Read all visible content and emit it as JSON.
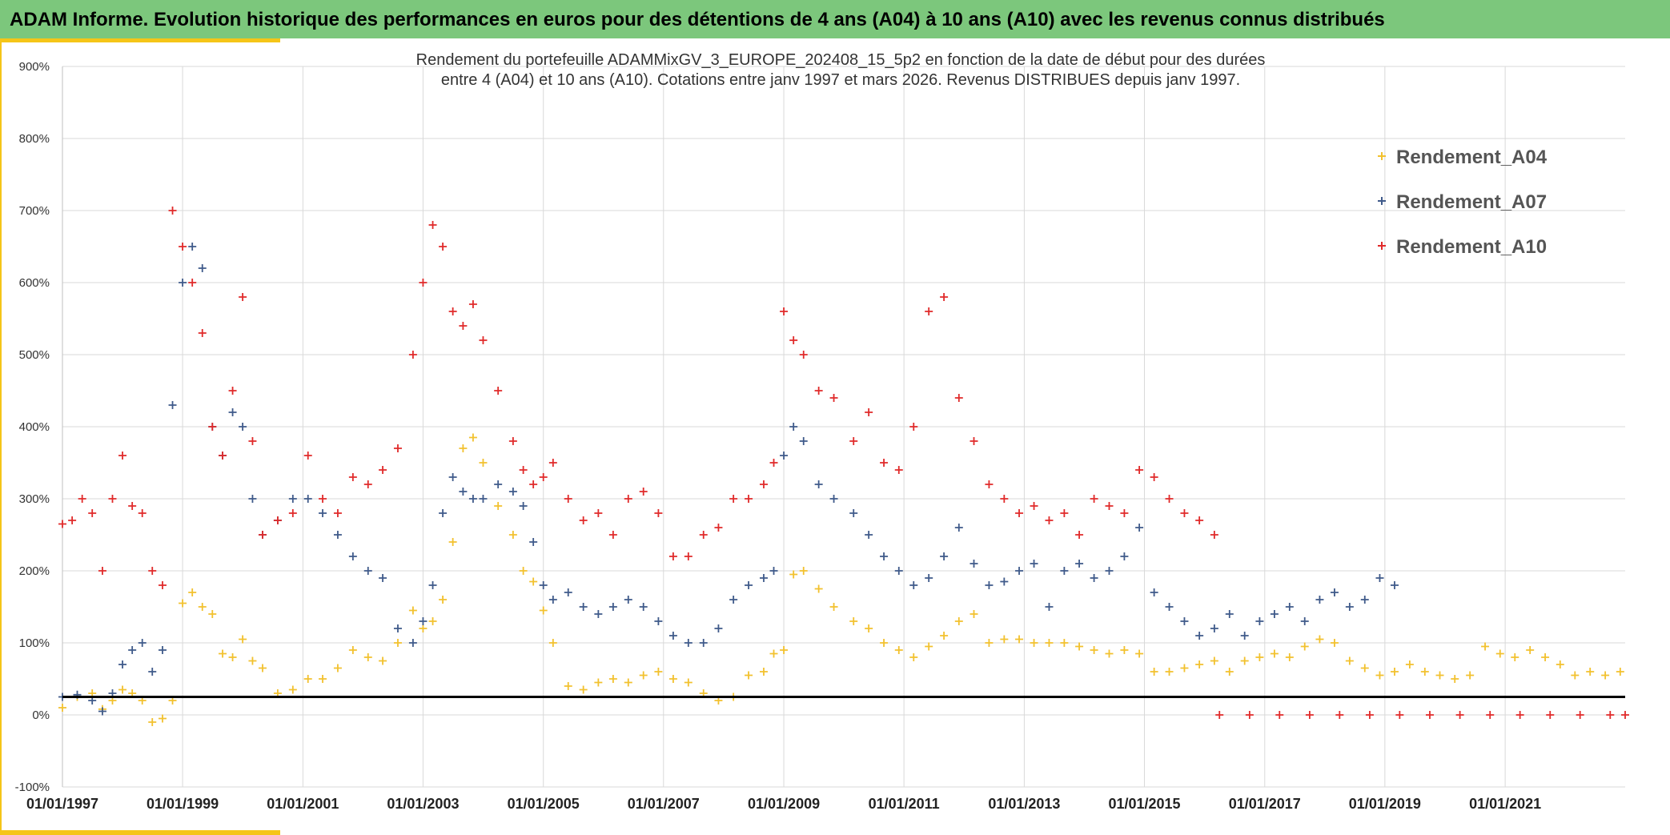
{
  "header": {
    "title": "ADAM Informe. Evolution historique des performances en euros pour des détentions de 4 ans (A04) à 10 ans (A10) avec les revenus connus distribués"
  },
  "chart_data": {
    "type": "scatter",
    "title_line1": "Rendement du portefeuille ADAMMixGV_3_EUROPE_202408_15_5p2  en fonction de la date de début pour des durées",
    "title_line2": "entre 4 (A04) et 10 ans (A10). Cotations entre janv 1997 et mars 2026. Revenus DISTRIBUES depuis janv 1997.",
    "ylim": [
      -100,
      900
    ],
    "yticks": [
      -100,
      0,
      100,
      200,
      300,
      400,
      500,
      600,
      700,
      800,
      900
    ],
    "ytick_labels": [
      "-100%",
      "0%",
      "100%",
      "200%",
      "300%",
      "400%",
      "500%",
      "600%",
      "700%",
      "800%",
      "900%"
    ],
    "xlim": [
      "1997-01-01",
      "2022-12-31"
    ],
    "xticks": [
      "1997-01-01",
      "1999-01-01",
      "2001-01-01",
      "2003-01-01",
      "2005-01-01",
      "2007-01-01",
      "2009-01-01",
      "2011-01-01",
      "2013-01-01",
      "2015-01-01",
      "2017-01-01",
      "2019-01-01",
      "2021-01-01"
    ],
    "xtick_labels": [
      "01/01/1997",
      "01/01/1999",
      "01/01/2001",
      "01/01/2003",
      "01/01/2005",
      "01/01/2007",
      "01/01/2009",
      "01/01/2011",
      "01/01/2013",
      "01/01/2015",
      "01/01/2017",
      "01/01/2019",
      "01/01/2021"
    ],
    "grid": true,
    "legend_position": "top-right",
    "reference_line": {
      "y": 25,
      "color": "#000000"
    },
    "series": [
      {
        "name": "Rendement_A04",
        "color": "#f2c12e",
        "x": [
          "1997-01-01",
          "1997-04-01",
          "1997-07-01",
          "1997-09-01",
          "1997-11-01",
          "1998-01-01",
          "1998-03-01",
          "1998-05-01",
          "1998-07-01",
          "1998-09-01",
          "1998-11-01",
          "1999-01-01",
          "1999-03-01",
          "1999-05-01",
          "1999-07-01",
          "1999-09-01",
          "1999-11-01",
          "2000-01-01",
          "2000-03-01",
          "2000-05-01",
          "2000-08-01",
          "2000-11-01",
          "2001-02-01",
          "2001-05-01",
          "2001-08-01",
          "2001-11-01",
          "2002-02-01",
          "2002-05-01",
          "2002-08-01",
          "2002-11-01",
          "2003-01-01",
          "2003-03-01",
          "2003-05-01",
          "2003-07-01",
          "2003-09-01",
          "2003-11-01",
          "2004-01-01",
          "2004-04-01",
          "2004-07-01",
          "2004-09-01",
          "2004-11-01",
          "2005-01-01",
          "2005-03-01",
          "2005-06-01",
          "2005-09-01",
          "2005-12-01",
          "2006-03-01",
          "2006-06-01",
          "2006-09-01",
          "2006-12-01",
          "2007-03-01",
          "2007-06-01",
          "2007-09-01",
          "2007-12-01",
          "2008-03-01",
          "2008-06-01",
          "2008-09-01",
          "2008-11-01",
          "2009-01-01",
          "2009-03-01",
          "2009-05-01",
          "2009-08-01",
          "2009-11-01",
          "2010-03-01",
          "2010-06-01",
          "2010-09-01",
          "2010-12-01",
          "2011-03-01",
          "2011-06-01",
          "2011-09-01",
          "2011-12-01",
          "2012-03-01",
          "2012-06-01",
          "2012-09-01",
          "2012-12-01",
          "2013-03-01",
          "2013-06-01",
          "2013-09-01",
          "2013-12-01",
          "2014-03-01",
          "2014-06-01",
          "2014-09-01",
          "2014-12-01",
          "2015-03-01",
          "2015-06-01",
          "2015-09-01",
          "2015-12-01",
          "2016-03-01",
          "2016-06-01",
          "2016-09-01",
          "2016-12-01",
          "2017-03-01",
          "2017-06-01",
          "2017-09-01",
          "2017-12-01",
          "2018-03-01",
          "2018-06-01",
          "2018-09-01",
          "2018-12-01",
          "2019-03-01",
          "2019-06-01",
          "2019-09-01",
          "2019-12-01",
          "2020-03-01",
          "2020-06-01",
          "2020-09-01",
          "2020-12-01",
          "2021-03-01",
          "2021-06-01",
          "2021-09-01",
          "2021-12-01",
          "2022-03-01",
          "2022-06-01",
          "2022-09-01",
          "2022-12-01"
        ],
        "y": [
          10,
          25,
          30,
          8,
          20,
          35,
          30,
          20,
          -10,
          -5,
          20,
          155,
          170,
          150,
          140,
          85,
          80,
          105,
          75,
          65,
          30,
          35,
          50,
          50,
          65,
          90,
          80,
          75,
          100,
          145,
          120,
          130,
          160,
          240,
          370,
          385,
          350,
          290,
          250,
          200,
          185,
          145,
          100,
          40,
          35,
          45,
          50,
          45,
          55,
          60,
          50,
          45,
          30,
          20,
          25,
          55,
          60,
          85,
          90,
          195,
          200,
          175,
          150,
          130,
          120,
          100,
          90,
          80,
          95,
          110,
          130,
          140,
          100,
          105,
          105,
          100,
          100,
          100,
          95,
          90,
          85,
          90,
          85,
          60,
          60,
          65,
          70,
          75,
          60,
          75,
          80,
          85,
          80,
          95,
          105,
          100,
          75,
          65,
          55,
          60,
          70,
          60,
          55,
          50,
          55,
          95,
          85,
          80,
          90,
          80,
          70,
          55,
          60,
          55,
          60
        ]
      },
      {
        "name": "Rendement_A07",
        "color": "#3f5a8a",
        "x": [
          "1997-01-01",
          "1997-04-01",
          "1997-07-01",
          "1997-09-01",
          "1997-11-01",
          "1998-01-01",
          "1998-03-01",
          "1998-05-01",
          "1998-07-01",
          "1998-09-01",
          "1998-11-01",
          "1999-01-01",
          "1999-03-01",
          "1999-05-01",
          "1999-07-01",
          "1999-09-01",
          "1999-11-01",
          "2000-01-01",
          "2000-03-01",
          "2000-05-01",
          "2000-08-01",
          "2000-11-01",
          "2001-02-01",
          "2001-05-01",
          "2001-08-01",
          "2001-11-01",
          "2002-02-01",
          "2002-05-01",
          "2002-08-01",
          "2002-11-01",
          "2003-01-01",
          "2003-03-01",
          "2003-05-01",
          "2003-07-01",
          "2003-09-01",
          "2003-11-01",
          "2004-01-01",
          "2004-04-01",
          "2004-07-01",
          "2004-09-01",
          "2004-11-01",
          "2005-01-01",
          "2005-03-01",
          "2005-06-01",
          "2005-09-01",
          "2005-12-01",
          "2006-03-01",
          "2006-06-01",
          "2006-09-01",
          "2006-12-01",
          "2007-03-01",
          "2007-06-01",
          "2007-09-01",
          "2007-12-01",
          "2008-03-01",
          "2008-06-01",
          "2008-09-01",
          "2008-11-01",
          "2009-01-01",
          "2009-03-01",
          "2009-05-01",
          "2009-08-01",
          "2009-11-01",
          "2010-03-01",
          "2010-06-01",
          "2010-09-01",
          "2010-12-01",
          "2011-03-01",
          "2011-06-01",
          "2011-09-01",
          "2011-12-01",
          "2012-03-01",
          "2012-06-01",
          "2012-09-01",
          "2012-12-01",
          "2013-03-01",
          "2013-06-01",
          "2013-09-01",
          "2013-12-01",
          "2014-03-01",
          "2014-06-01",
          "2014-09-01",
          "2014-12-01",
          "2015-03-01",
          "2015-06-01",
          "2015-09-01",
          "2015-12-01",
          "2016-03-01",
          "2016-06-01",
          "2016-09-01",
          "2016-12-01",
          "2017-03-01",
          "2017-06-01",
          "2017-09-01",
          "2017-12-01",
          "2018-03-01",
          "2018-06-01",
          "2018-09-01",
          "2018-12-01",
          "2019-03-01"
        ],
        "y": [
          25,
          28,
          20,
          5,
          30,
          70,
          90,
          100,
          60,
          90,
          430,
          600,
          650,
          620,
          400,
          360,
          420,
          400,
          300,
          250,
          270,
          300,
          300,
          280,
          250,
          220,
          200,
          190,
          120,
          100,
          130,
          180,
          280,
          330,
          310,
          300,
          300,
          320,
          310,
          290,
          240,
          180,
          160,
          170,
          150,
          140,
          150,
          160,
          150,
          130,
          110,
          100,
          100,
          120,
          160,
          180,
          190,
          200,
          360,
          400,
          380,
          320,
          300,
          280,
          250,
          220,
          200,
          180,
          190,
          220,
          260,
          210,
          180,
          185,
          200,
          210,
          150,
          200,
          210,
          190,
          200,
          220,
          260,
          170,
          150,
          130,
          110,
          120,
          140,
          110,
          130,
          140,
          150,
          130,
          160,
          170,
          150,
          160,
          190,
          180
        ]
      },
      {
        "name": "Rendement_A10",
        "color": "#e02a2a",
        "x": [
          "1997-01-01",
          "1997-03-01",
          "1997-05-01",
          "1997-07-01",
          "1997-09-01",
          "1997-11-01",
          "1998-01-01",
          "1998-03-01",
          "1998-05-01",
          "1998-07-01",
          "1998-09-01",
          "1998-11-01",
          "1999-01-01",
          "1999-03-01",
          "1999-05-01",
          "1999-07-01",
          "1999-09-01",
          "1999-11-01",
          "2000-01-01",
          "2000-03-01",
          "2000-05-01",
          "2000-08-01",
          "2000-11-01",
          "2001-02-01",
          "2001-05-01",
          "2001-08-01",
          "2001-11-01",
          "2002-02-01",
          "2002-05-01",
          "2002-08-01",
          "2002-11-01",
          "2003-01-01",
          "2003-03-01",
          "2003-05-01",
          "2003-07-01",
          "2003-09-01",
          "2003-11-01",
          "2004-01-01",
          "2004-04-01",
          "2004-07-01",
          "2004-09-01",
          "2004-11-01",
          "2005-01-01",
          "2005-03-01",
          "2005-06-01",
          "2005-09-01",
          "2005-12-01",
          "2006-03-01",
          "2006-06-01",
          "2006-09-01",
          "2006-12-01",
          "2007-03-01",
          "2007-06-01",
          "2007-09-01",
          "2007-12-01",
          "2008-03-01",
          "2008-06-01",
          "2008-09-01",
          "2008-11-01",
          "2009-01-01",
          "2009-03-01",
          "2009-05-01",
          "2009-08-01",
          "2009-11-01",
          "2010-03-01",
          "2010-06-01",
          "2010-09-01",
          "2010-12-01",
          "2011-03-01",
          "2011-06-01",
          "2011-09-01",
          "2011-12-01",
          "2012-03-01",
          "2012-06-01",
          "2012-09-01",
          "2012-12-01",
          "2013-03-01",
          "2013-06-01",
          "2013-09-01",
          "2013-12-01",
          "2014-03-01",
          "2014-06-01",
          "2014-09-01",
          "2014-12-01",
          "2015-03-01",
          "2015-06-01",
          "2015-09-01",
          "2015-12-01",
          "2016-03-01"
        ],
        "y": [
          265,
          270,
          300,
          280,
          200,
          300,
          360,
          290,
          280,
          200,
          180,
          700,
          650,
          600,
          530,
          400,
          360,
          450,
          580,
          380,
          250,
          270,
          280,
          360,
          300,
          280,
          330,
          320,
          340,
          370,
          500,
          600,
          680,
          650,
          560,
          540,
          570,
          520,
          450,
          380,
          340,
          320,
          330,
          350,
          300,
          270,
          280,
          250,
          300,
          310,
          280,
          220,
          220,
          250,
          260,
          300,
          300,
          320,
          350,
          560,
          520,
          500,
          450,
          440,
          380,
          420,
          350,
          340,
          400,
          560,
          580,
          440,
          380,
          320,
          300,
          280,
          290,
          270,
          280,
          250,
          300,
          290,
          280,
          340,
          330,
          300,
          280,
          270,
          250
        ]
      },
      {
        "name": "Rendement_A10_zero",
        "color": "#e02a2a",
        "x": [
          "2016-04-01",
          "2016-10-01",
          "2017-04-01",
          "2017-10-01",
          "2018-04-01",
          "2018-10-01",
          "2019-04-01",
          "2019-10-01",
          "2020-04-01",
          "2020-10-01",
          "2021-04-01",
          "2021-10-01",
          "2022-04-01",
          "2022-10-01",
          "2022-12-31"
        ],
        "y": [
          0,
          0,
          0,
          0,
          0,
          0,
          0,
          0,
          0,
          0,
          0,
          0,
          0,
          0,
          0
        ]
      }
    ]
  }
}
